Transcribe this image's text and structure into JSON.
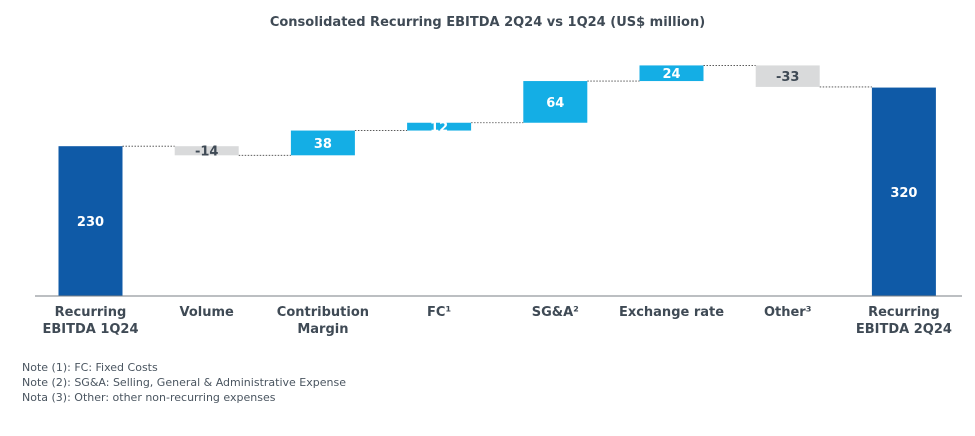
{
  "chart_data": {
    "type": "waterfall",
    "title": "Consolidated Recurring EBITDA 2Q24 vs 1Q24 (US$ million)",
    "categories": [
      {
        "line1": "Recurring",
        "line2": "EBITDA 1Q24"
      },
      {
        "line1": "Volume",
        "line2": ""
      },
      {
        "line1": "Contribution",
        "line2": "Margin"
      },
      {
        "line1": "FC¹",
        "line2": ""
      },
      {
        "line1": "SG&A²",
        "line2": ""
      },
      {
        "line1": "Exchange rate",
        "line2": ""
      },
      {
        "line1": "Other³",
        "line2": ""
      },
      {
        "line1": "Recurring",
        "line2": "EBITDA 2Q24"
      }
    ],
    "values": [
      230,
      -14,
      38,
      12,
      64,
      24,
      -33,
      320
    ],
    "labels": [
      "230",
      "-14",
      "38",
      "12",
      "64",
      "24",
      "-33",
      "320"
    ],
    "kinds": [
      "total",
      "delta",
      "delta",
      "delta",
      "delta",
      "delta",
      "delta",
      "total"
    ],
    "ylim": [
      0,
      370
    ],
    "grid": false,
    "colors": {
      "total": "#0f5aa7",
      "increase": "#14aee5",
      "decrease": "#d9dadb",
      "total_label": "#ffffff",
      "increase_label": "#ffffff",
      "decrease_label": "#3f4a55",
      "axis": "#7a7f85",
      "connector": "#444444"
    }
  },
  "notes": [
    "Note (1): FC: Fixed Costs",
    "Note (2): SG&A: Selling, General & Administrative Expense",
    "Nota (3): Other: other non-recurring expenses"
  ]
}
